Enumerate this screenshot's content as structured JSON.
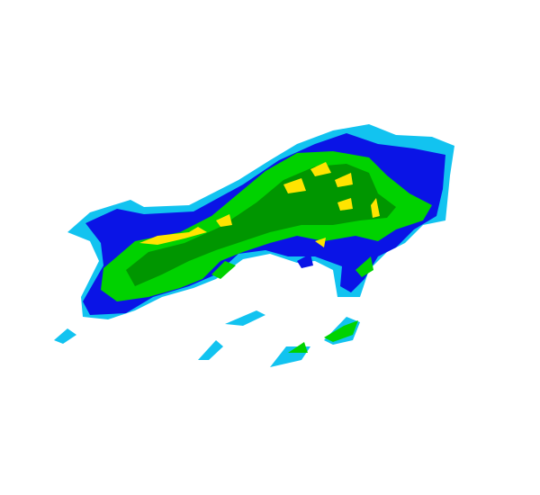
{
  "radar": {
    "palette": {
      "light_rain": "#12c3f0",
      "moderate_blue": "#0a14e6",
      "green": "#00d200",
      "dark_green": "#009600",
      "yellow": "#ffe400"
    }
  }
}
